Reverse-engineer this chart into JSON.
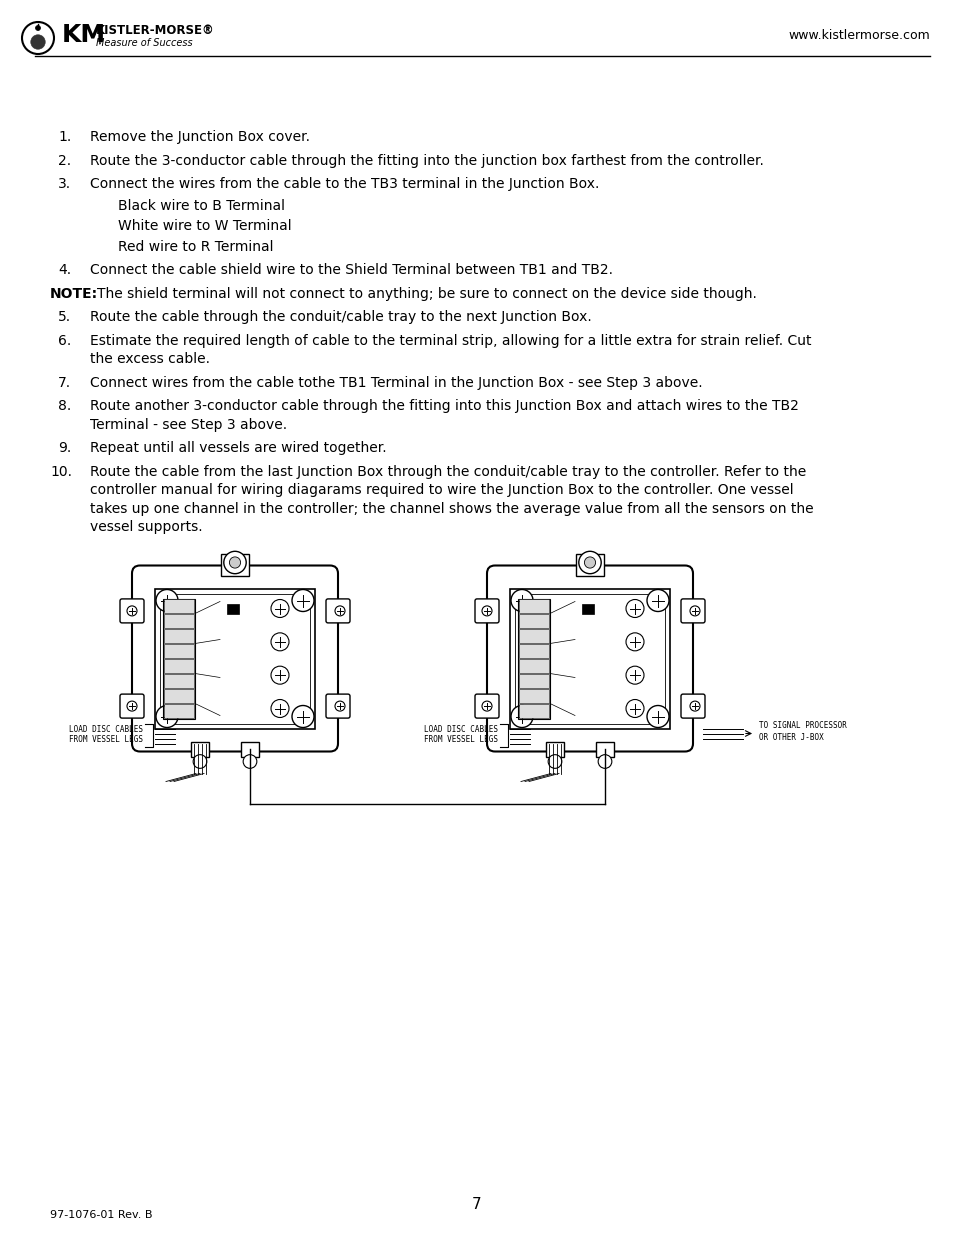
{
  "page_background": "#ffffff",
  "header_url": "www.kistlermorse.com",
  "footer_page_num": "7",
  "footer_doc_ref": "97-1076-01 Rev. B",
  "items": [
    {
      "type": "numbered",
      "num": "1.",
      "text": "Remove the Junction Box cover."
    },
    {
      "type": "numbered",
      "num": "2.",
      "text": "Route the 3-conductor cable through the fitting into the junction box farthest from the controller."
    },
    {
      "type": "numbered",
      "num": "3.",
      "text": "Connect the wires from the cable to the TB3 terminal in the Junction Box."
    },
    {
      "type": "sub",
      "num": "",
      "text": "Black wire to B Terminal"
    },
    {
      "type": "sub",
      "num": "",
      "text": "White wire to W Terminal"
    },
    {
      "type": "sub",
      "num": "",
      "text": "Red wire to R Terminal"
    },
    {
      "type": "numbered",
      "num": "4.",
      "text": "Connect the cable shield wire to the Shield Terminal between TB1 and TB2."
    },
    {
      "type": "note",
      "num": "NOTE:",
      "text": " The shield terminal will not connect to anything; be sure to connect on the device side though."
    },
    {
      "type": "numbered",
      "num": "5.",
      "text": "Route the cable through the conduit/cable tray to the next Junction Box."
    },
    {
      "type": "numbered",
      "num": "6.",
      "text": "Estimate the required length of cable to the terminal strip, allowing for a little extra for strain relief. Cut the excess cable.",
      "wrap": true
    },
    {
      "type": "numbered",
      "num": "7.",
      "text": "Connect wires from the cable tothe TB1 Terminal in the Junction Box - see Step 3 above."
    },
    {
      "type": "numbered",
      "num": "8.",
      "text": "Route another 3-conductor cable through the fitting into this Junction Box and attach wires to the TB2 Terminal - see Step 3 above.",
      "wrap": true
    },
    {
      "type": "numbered",
      "num": "9.",
      "text": "Repeat until all vessels are wired together."
    },
    {
      "type": "numbered",
      "num": "10.",
      "text": "Route the cable from the last Junction Box through the conduit/cable tray to the controller. Refer to the controller manual for wiring diagarams required to wire the Junction Box to the controller. One vessel takes up one channel in the controller; the channel shows the average value from all the sensors on the vessel supports.",
      "wrap": true
    }
  ],
  "diagram_label_l1": "LOAD DISC CABLES",
  "diagram_label_l2": "FROM VESSEL LEGS",
  "diagram_label_m1": "LOAD DISC CABLES",
  "diagram_label_m2": "FROM VESSEL LEGS",
  "diagram_label_r1": "TO SIGNAL PROCESSOR",
  "diagram_label_r2": "OR OTHER J-BOX"
}
